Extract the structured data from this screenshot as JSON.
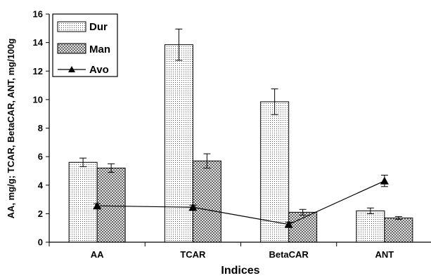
{
  "colors": {
    "background": "#ffffff",
    "axis": "#000000",
    "bar_fill": "#ffffff",
    "pattern_ink": "#000000"
  },
  "chart_data": {
    "type": "bar",
    "title": "",
    "xlabel": "Indices",
    "ylabel": "AA, mg/g; TCAR, BetaCAR, ANT, mg/100g",
    "categories": [
      "AA",
      "TCAR",
      "BetaCAR",
      "ANT"
    ],
    "ylim": [
      0,
      16
    ],
    "yticks": [
      0,
      2,
      4,
      6,
      8,
      10,
      12,
      14,
      16
    ],
    "grid": false,
    "legend_position": "top-left",
    "series": [
      {
        "name": "Dur",
        "type": "bar",
        "pattern": "fine-dots",
        "values": [
          5.6,
          13.85,
          9.85,
          2.2
        ],
        "errors": [
          0.3,
          1.1,
          0.9,
          0.2
        ]
      },
      {
        "name": "Man",
        "type": "bar",
        "pattern": "crosshatch",
        "values": [
          5.2,
          5.7,
          2.1,
          1.7
        ],
        "errors": [
          0.3,
          0.5,
          0.2,
          0.1
        ]
      },
      {
        "name": "Avo",
        "type": "line",
        "marker": "triangle",
        "values": [
          2.55,
          2.45,
          1.25,
          4.3
        ],
        "errors": [
          0.15,
          0.15,
          0.15,
          0.4
        ]
      }
    ]
  }
}
